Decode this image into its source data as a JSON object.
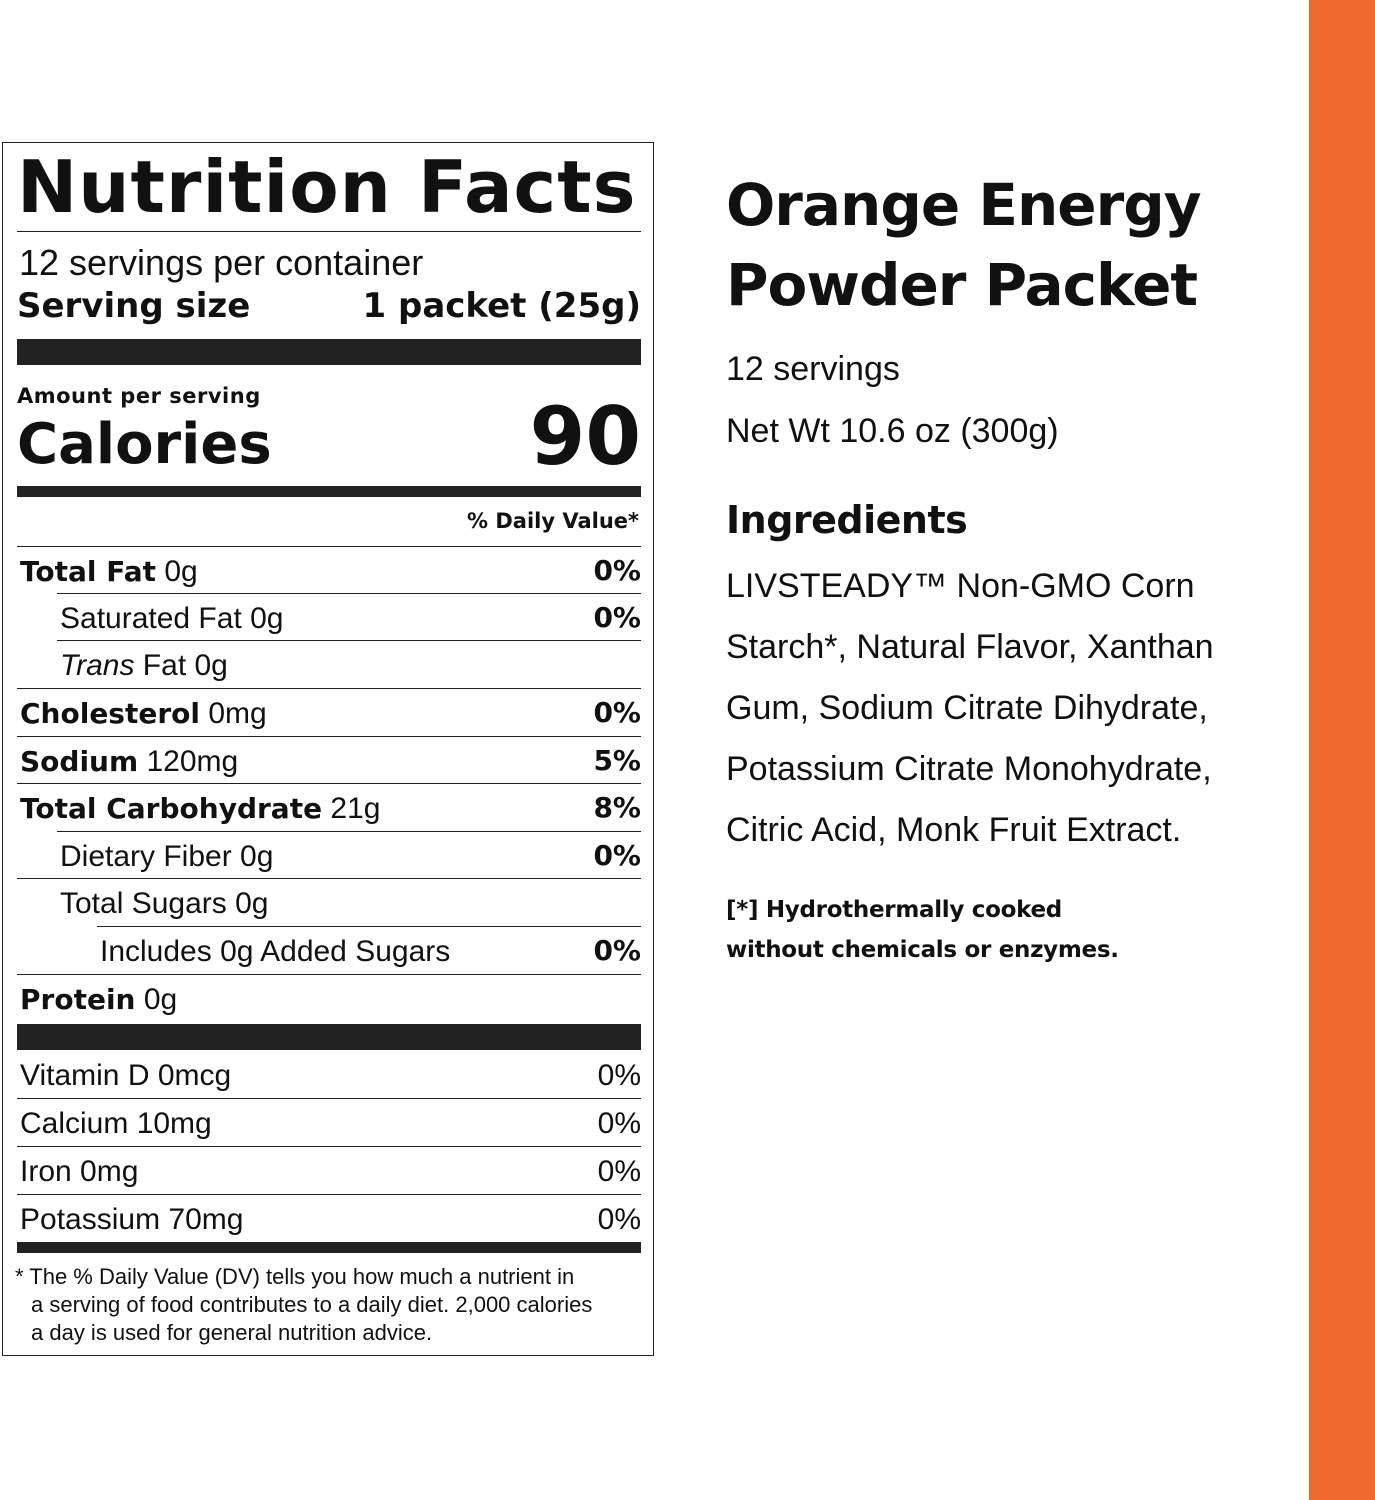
{
  "accent_color": "#EF6A2C",
  "nutrition": {
    "title": "Nutrition Facts",
    "servings_per_container": "12 servings per container",
    "serving_size_label": "Serving size",
    "serving_size_value": "1 packet (25g)",
    "amount_per_serving": "Amount per serving",
    "calories_label": "Calories",
    "calories_value": "90",
    "daily_value_header": "% Daily Value*",
    "rows": [
      {
        "bold": "Total Fat",
        "amount": " 0g",
        "pct": "0%"
      },
      {
        "label": "Saturated Fat 0g",
        "pct": "0%"
      },
      {
        "italic": "Trans",
        "rest": " Fat 0g"
      },
      {
        "bold": "Cholesterol",
        "amount": " 0mg",
        "pct": "0%"
      },
      {
        "bold": "Sodium",
        "amount": " 120mg",
        "pct": "5%"
      },
      {
        "bold": "Total Carbohydrate",
        "amount": " 21g",
        "pct": "8%"
      },
      {
        "label": "Dietary Fiber 0g",
        "pct": "0%"
      },
      {
        "label": "Total Sugars 0g"
      },
      {
        "label": "Includes 0g Added Sugars",
        "pct": "0%"
      },
      {
        "bold": "Protein",
        "amount": " 0g"
      }
    ],
    "vitamins": [
      {
        "label": "Vitamin D 0mcg",
        "pct": "0%"
      },
      {
        "label": "Calcium 10mg",
        "pct": "0%"
      },
      {
        "label": "Iron 0mg",
        "pct": "0%"
      },
      {
        "label": "Potassium 70mg",
        "pct": "0%"
      }
    ],
    "footnote_1": "* The % Daily Value (DV) tells you how much a nutrient in",
    "footnote_2": "a serving of food contributes to a daily diet. 2,000 calories",
    "footnote_3": "a day is used for general nutrition advice."
  },
  "product": {
    "name_line1": "Orange Energy",
    "name_line2": "Powder Packet",
    "servings": "12 servings",
    "net_weight": "Net Wt 10.6 oz (300g)",
    "ingredients_heading": "Ingredients",
    "ingredients_text": "LIVSTEADY™ Non-GMO Corn Starch*, Natural Flavor, Xanthan Gum, Sodium Citrate Dihydrate, Potassium Citrate Monohydrate, Citric Acid, Monk Fruit Extract.",
    "note_line1": "[*] Hydrothermally cooked",
    "note_line2": "without chemicals or enzymes."
  }
}
